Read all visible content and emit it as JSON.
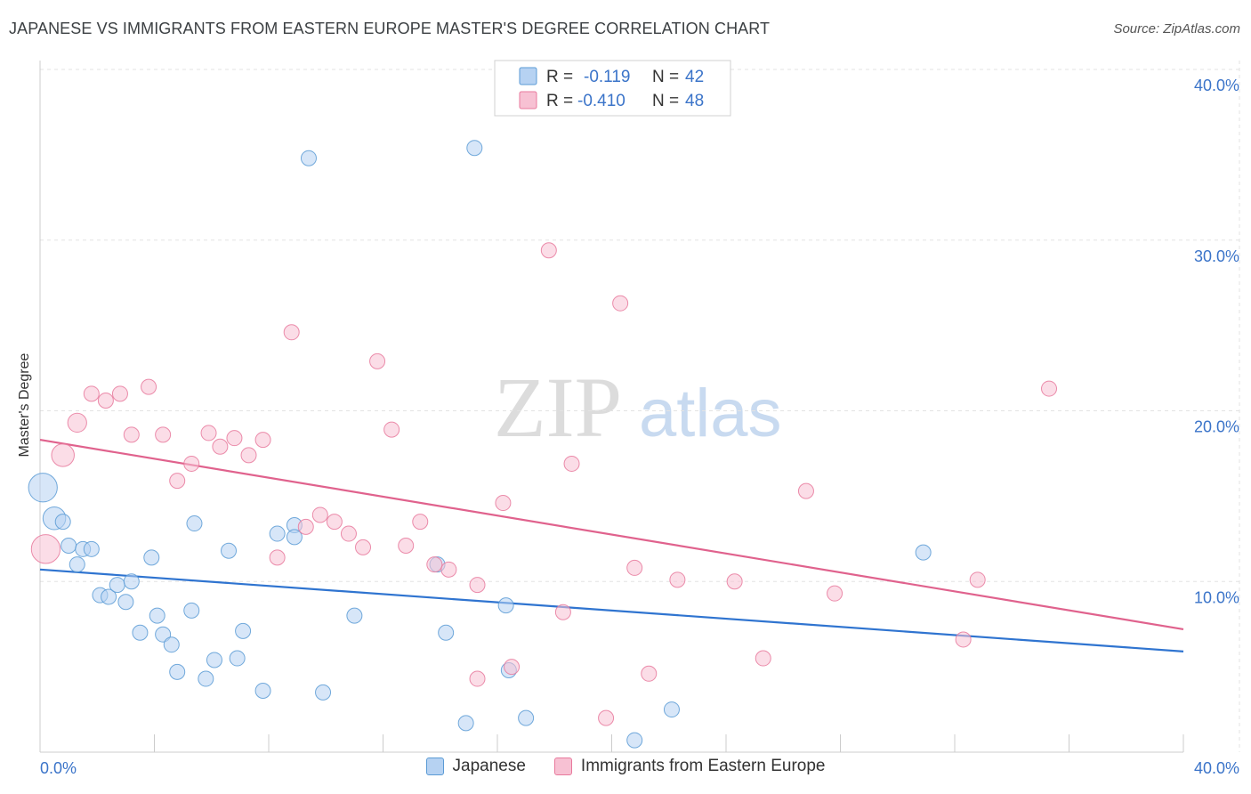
{
  "header": {
    "title": "JAPANESE VS IMMIGRANTS FROM EASTERN EUROPE MASTER'S DEGREE CORRELATION CHART",
    "source": "Source: ZipAtlas.com"
  },
  "watermark": {
    "zip": "ZIP",
    "atlas": "atlas"
  },
  "legend": {
    "rows": [
      {
        "r_label": "R =",
        "r_value": "-0.119",
        "n_label": "N =",
        "n_value": "42",
        "color": "#5b9bd5"
      },
      {
        "r_label": "R =",
        "r_value": "-0.410",
        "n_label": "N =",
        "n_value": "48",
        "color": "#e8799c"
      }
    ]
  },
  "chart_data": {
    "type": "scatter",
    "title": "JAPANESE VS IMMIGRANTS FROM EASTERN EUROPE MASTER'S DEGREE CORRELATION CHART",
    "xlabel": "",
    "ylabel": "Master's Degree",
    "xlim": [
      0,
      40
    ],
    "ylim": [
      0,
      40
    ],
    "x_tick_labels": [
      "0.0%",
      "40.0%"
    ],
    "y_ticks": [
      10,
      20,
      30,
      40
    ],
    "y_tick_labels": [
      "10.0%",
      "20.0%",
      "30.0%",
      "40.0%"
    ],
    "grid": true,
    "legend_position": "bottom",
    "series": [
      {
        "name": "Japanese",
        "color": "#5b9bd5",
        "fill": "#b6d2f2",
        "trend": {
          "x": [
            0,
            40
          ],
          "y": [
            10.7,
            5.9
          ]
        },
        "points": [
          {
            "x": 0.1,
            "y": 15.5,
            "s": 3
          },
          {
            "x": 0.5,
            "y": 13.7,
            "s": 2
          },
          {
            "x": 0.8,
            "y": 13.5,
            "s": 1
          },
          {
            "x": 1.0,
            "y": 12.1,
            "s": 1
          },
          {
            "x": 1.3,
            "y": 11.0,
            "s": 1
          },
          {
            "x": 1.5,
            "y": 11.9,
            "s": 1
          },
          {
            "x": 1.8,
            "y": 11.9,
            "s": 1
          },
          {
            "x": 2.1,
            "y": 9.2,
            "s": 1
          },
          {
            "x": 2.4,
            "y": 9.1,
            "s": 1
          },
          {
            "x": 2.7,
            "y": 9.8,
            "s": 1
          },
          {
            "x": 3.0,
            "y": 8.8,
            "s": 1
          },
          {
            "x": 3.2,
            "y": 10.0,
            "s": 1
          },
          {
            "x": 3.5,
            "y": 7.0,
            "s": 1
          },
          {
            "x": 3.9,
            "y": 11.4,
            "s": 1
          },
          {
            "x": 4.1,
            "y": 8.0,
            "s": 1
          },
          {
            "x": 4.3,
            "y": 6.9,
            "s": 1
          },
          {
            "x": 4.6,
            "y": 6.3,
            "s": 1
          },
          {
            "x": 4.8,
            "y": 4.7,
            "s": 1
          },
          {
            "x": 5.3,
            "y": 8.3,
            "s": 1
          },
          {
            "x": 5.4,
            "y": 13.4,
            "s": 1
          },
          {
            "x": 5.8,
            "y": 4.3,
            "s": 1
          },
          {
            "x": 6.1,
            "y": 5.4,
            "s": 1
          },
          {
            "x": 6.6,
            "y": 11.8,
            "s": 1
          },
          {
            "x": 6.9,
            "y": 5.5,
            "s": 1
          },
          {
            "x": 7.1,
            "y": 7.1,
            "s": 1
          },
          {
            "x": 7.8,
            "y": 3.6,
            "s": 1
          },
          {
            "x": 8.3,
            "y": 12.8,
            "s": 1
          },
          {
            "x": 8.9,
            "y": 13.3,
            "s": 1
          },
          {
            "x": 8.9,
            "y": 12.6,
            "s": 1
          },
          {
            "x": 9.4,
            "y": 34.8,
            "s": 1
          },
          {
            "x": 9.9,
            "y": 3.5,
            "s": 1
          },
          {
            "x": 11.0,
            "y": 8.0,
            "s": 1
          },
          {
            "x": 13.9,
            "y": 11.0,
            "s": 1
          },
          {
            "x": 14.2,
            "y": 7.0,
            "s": 1
          },
          {
            "x": 14.9,
            "y": 1.7,
            "s": 1
          },
          {
            "x": 15.2,
            "y": 35.4,
            "s": 1
          },
          {
            "x": 16.3,
            "y": 8.6,
            "s": 1
          },
          {
            "x": 16.4,
            "y": 4.8,
            "s": 1
          },
          {
            "x": 17.0,
            "y": 2.0,
            "s": 1
          },
          {
            "x": 20.8,
            "y": 0.7,
            "s": 1
          },
          {
            "x": 22.1,
            "y": 2.5,
            "s": 1
          },
          {
            "x": 30.9,
            "y": 11.7,
            "s": 1
          }
        ]
      },
      {
        "name": "Immigrants from Eastern Europe",
        "color": "#e8799c",
        "fill": "#f7c1d3",
        "trend": {
          "x": [
            0,
            40
          ],
          "y": [
            18.3,
            7.2
          ]
        },
        "points": [
          {
            "x": 0.2,
            "y": 11.9,
            "s": 3
          },
          {
            "x": 0.8,
            "y": 17.4,
            "s": 2
          },
          {
            "x": 1.3,
            "y": 19.3,
            "s": 1.5
          },
          {
            "x": 1.8,
            "y": 21.0,
            "s": 1
          },
          {
            "x": 2.3,
            "y": 20.6,
            "s": 1
          },
          {
            "x": 2.8,
            "y": 21.0,
            "s": 1
          },
          {
            "x": 3.2,
            "y": 18.6,
            "s": 1
          },
          {
            "x": 3.8,
            "y": 21.4,
            "s": 1
          },
          {
            "x": 4.3,
            "y": 18.6,
            "s": 1
          },
          {
            "x": 4.8,
            "y": 15.9,
            "s": 1
          },
          {
            "x": 5.3,
            "y": 16.9,
            "s": 1
          },
          {
            "x": 5.9,
            "y": 18.7,
            "s": 1
          },
          {
            "x": 6.3,
            "y": 17.9,
            "s": 1
          },
          {
            "x": 6.8,
            "y": 18.4,
            "s": 1
          },
          {
            "x": 7.3,
            "y": 17.4,
            "s": 1
          },
          {
            "x": 7.8,
            "y": 18.3,
            "s": 1
          },
          {
            "x": 8.3,
            "y": 11.4,
            "s": 1
          },
          {
            "x": 8.8,
            "y": 24.6,
            "s": 1
          },
          {
            "x": 9.3,
            "y": 13.2,
            "s": 1
          },
          {
            "x": 9.8,
            "y": 13.9,
            "s": 1
          },
          {
            "x": 10.3,
            "y": 13.5,
            "s": 1
          },
          {
            "x": 10.8,
            "y": 12.8,
            "s": 1
          },
          {
            "x": 11.3,
            "y": 12.0,
            "s": 1
          },
          {
            "x": 11.8,
            "y": 22.9,
            "s": 1
          },
          {
            "x": 12.3,
            "y": 18.9,
            "s": 1
          },
          {
            "x": 12.8,
            "y": 12.1,
            "s": 1
          },
          {
            "x": 13.3,
            "y": 13.5,
            "s": 1
          },
          {
            "x": 13.8,
            "y": 11.0,
            "s": 1
          },
          {
            "x": 14.3,
            "y": 10.7,
            "s": 1
          },
          {
            "x": 15.3,
            "y": 9.8,
            "s": 1
          },
          {
            "x": 15.3,
            "y": 4.3,
            "s": 1
          },
          {
            "x": 16.2,
            "y": 14.6,
            "s": 1
          },
          {
            "x": 16.5,
            "y": 5.0,
            "s": 1
          },
          {
            "x": 17.8,
            "y": 29.4,
            "s": 1
          },
          {
            "x": 18.3,
            "y": 8.2,
            "s": 1
          },
          {
            "x": 18.6,
            "y": 16.9,
            "s": 1
          },
          {
            "x": 19.8,
            "y": 2.0,
            "s": 1
          },
          {
            "x": 20.3,
            "y": 26.3,
            "s": 1
          },
          {
            "x": 20.8,
            "y": 10.8,
            "s": 1
          },
          {
            "x": 21.3,
            "y": 4.6,
            "s": 1
          },
          {
            "x": 22.3,
            "y": 10.1,
            "s": 1
          },
          {
            "x": 24.3,
            "y": 10.0,
            "s": 1
          },
          {
            "x": 25.3,
            "y": 5.5,
            "s": 1
          },
          {
            "x": 26.8,
            "y": 15.3,
            "s": 1
          },
          {
            "x": 27.8,
            "y": 9.3,
            "s": 1
          },
          {
            "x": 32.3,
            "y": 6.6,
            "s": 1
          },
          {
            "x": 32.8,
            "y": 10.1,
            "s": 1
          },
          {
            "x": 35.3,
            "y": 21.3,
            "s": 1
          }
        ]
      }
    ]
  }
}
